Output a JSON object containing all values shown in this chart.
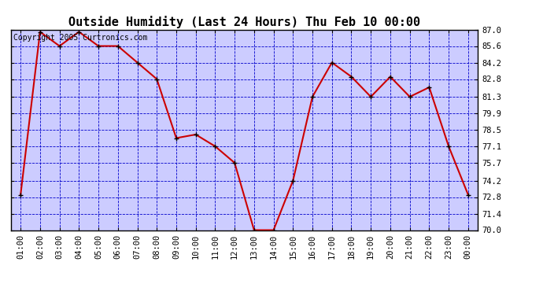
{
  "title": "Outside Humidity (Last 24 Hours) Thu Feb 10 00:00",
  "copyright": "Copyright 2005 Curtronics.com",
  "x_labels": [
    "01:00",
    "02:00",
    "03:00",
    "04:00",
    "05:00",
    "06:00",
    "07:00",
    "08:00",
    "09:00",
    "10:00",
    "11:00",
    "12:00",
    "13:00",
    "14:00",
    "15:00",
    "16:00",
    "17:00",
    "18:00",
    "19:00",
    "20:00",
    "21:00",
    "22:00",
    "23:00",
    "00:00"
  ],
  "x_values": [
    1,
    2,
    3,
    4,
    5,
    6,
    7,
    8,
    9,
    10,
    11,
    12,
    13,
    14,
    15,
    16,
    17,
    18,
    19,
    20,
    21,
    22,
    23,
    24
  ],
  "y_values": [
    73.0,
    86.8,
    85.6,
    86.8,
    85.6,
    85.6,
    84.2,
    82.8,
    77.8,
    78.1,
    77.1,
    75.7,
    70.0,
    70.0,
    74.2,
    81.3,
    84.2,
    83.0,
    81.3,
    83.0,
    81.3,
    82.1,
    77.1,
    73.0
  ],
  "ylim": [
    70.0,
    87.0
  ],
  "yticks": [
    70.0,
    71.4,
    72.8,
    74.2,
    75.7,
    77.1,
    78.5,
    79.9,
    81.3,
    82.8,
    84.2,
    85.6,
    87.0
  ],
  "line_color": "#cc0000",
  "marker_color": "#000000",
  "plot_bg_color": "#ccccff",
  "fig_bg_color": "#ffffff",
  "grid_color": "#0000cc",
  "title_fontsize": 11,
  "copyright_fontsize": 7,
  "tick_fontsize": 7.5
}
